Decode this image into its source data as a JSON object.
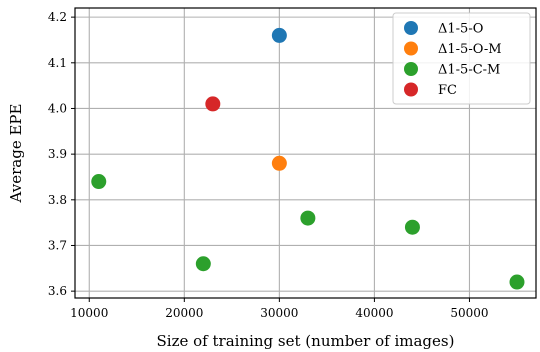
{
  "chart_data": {
    "type": "scatter",
    "title": "",
    "xlabel": "Size of training set (number of images)",
    "ylabel": "Average EPE",
    "xlim": [
      8500,
      57000
    ],
    "ylim": [
      3.585,
      4.22
    ],
    "xticks": [
      10000,
      20000,
      30000,
      40000,
      50000
    ],
    "yticks": [
      3.6,
      3.7,
      3.8,
      3.9,
      4.0,
      4.1,
      4.2
    ],
    "grid": true,
    "legend_position": "top-right",
    "series": [
      {
        "name": "Δ1-5-O",
        "color": "#1f77b4",
        "points": [
          {
            "x": 30000,
            "y": 4.16
          }
        ]
      },
      {
        "name": "Δ1-5-O-M",
        "color": "#ff7f0e",
        "points": [
          {
            "x": 30000,
            "y": 3.88
          }
        ]
      },
      {
        "name": "Δ1-5-C-M",
        "color": "#2ca02c",
        "points": [
          {
            "x": 11000,
            "y": 3.84
          },
          {
            "x": 22000,
            "y": 3.66
          },
          {
            "x": 33000,
            "y": 3.76
          },
          {
            "x": 44000,
            "y": 3.74
          },
          {
            "x": 55000,
            "y": 3.62
          }
        ]
      },
      {
        "name": "FC",
        "color": "#d62728",
        "points": [
          {
            "x": 23000,
            "y": 4.01
          }
        ]
      }
    ]
  }
}
